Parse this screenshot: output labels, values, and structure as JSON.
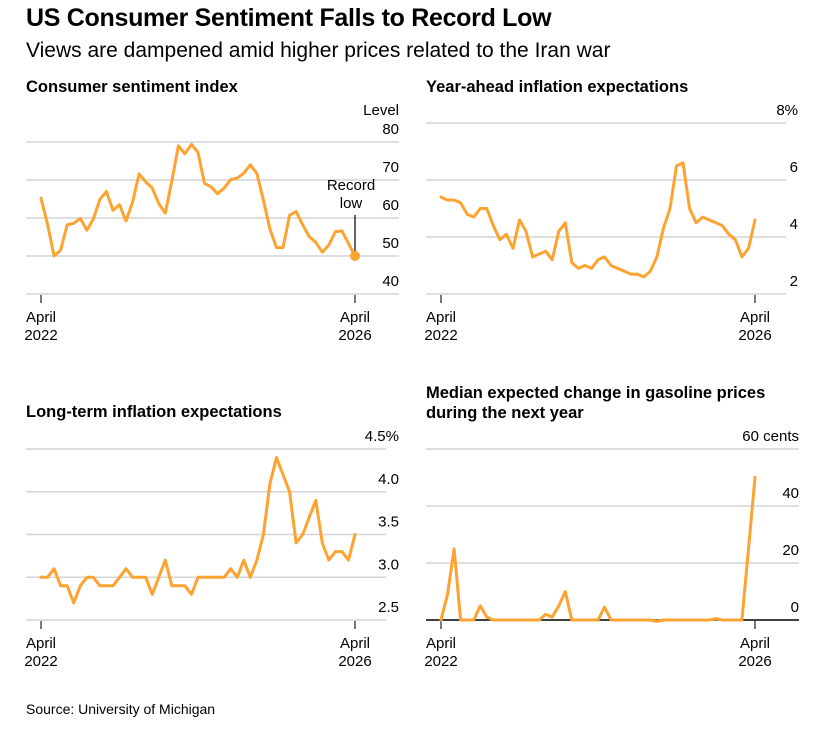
{
  "header": {
    "title": "US Consumer Sentiment Falls to Record Low",
    "subtitle": "Views are dampened amid higher prices related to the Iran war"
  },
  "source": "Source: University of Michigan",
  "colors": {
    "line": "#fca331",
    "grid": "#d4d4d4",
    "baseline": "#000000"
  },
  "chart_data": [
    {
      "type": "line",
      "title": "Consumer sentiment index",
      "unit_label": "Level",
      "x_start": "April 2022",
      "x_end": "April 2026",
      "x_tick_labels": [
        [
          "April",
          "2022"
        ],
        [
          "April",
          "2026"
        ]
      ],
      "y_ticks": [
        "80",
        "70",
        "60",
        "50",
        "40"
      ],
      "y_tick_values": [
        80,
        70,
        60,
        50,
        40
      ],
      "ylim": [
        40,
        80
      ],
      "annotation": {
        "text": [
          "Record",
          "low"
        ],
        "point_index": 48
      },
      "values": [
        65.2,
        58.4,
        50.0,
        51.5,
        58.2,
        58.6,
        59.9,
        56.8,
        59.7,
        64.9,
        67.0,
        62.0,
        63.5,
        59.2,
        64.2,
        71.6,
        69.5,
        67.9,
        63.8,
        61.3,
        69.7,
        79.0,
        76.9,
        79.4,
        77.2,
        69.1,
        68.2,
        66.4,
        67.9,
        70.1,
        70.5,
        71.8,
        74.0,
        71.7,
        64.7,
        57.0,
        52.2,
        52.2,
        60.7,
        61.7,
        58.2,
        55.1,
        53.6,
        51.0,
        52.9,
        56.4,
        56.6,
        53.3,
        50.0
      ]
    },
    {
      "type": "line",
      "title": "Year-ahead inflation expectations",
      "x_start": "April 2022",
      "x_end": "April 2026",
      "x_tick_labels": [
        [
          "April",
          "2022"
        ],
        [
          "April",
          "2026"
        ]
      ],
      "y_ticks": [
        "8%",
        "6",
        "4",
        "2"
      ],
      "y_tick_values": [
        8,
        6,
        4,
        2
      ],
      "ylim": [
        2,
        8
      ],
      "values": [
        5.4,
        5.3,
        5.3,
        5.2,
        4.8,
        4.7,
        5.0,
        5.0,
        4.4,
        3.9,
        4.1,
        3.6,
        4.6,
        4.2,
        3.3,
        3.4,
        3.5,
        3.2,
        4.2,
        4.5,
        3.1,
        2.9,
        3.0,
        2.9,
        3.2,
        3.3,
        3.0,
        2.9,
        2.8,
        2.7,
        2.7,
        2.6,
        2.8,
        3.3,
        4.3,
        5.0,
        6.5,
        6.6,
        5.0,
        4.5,
        4.7,
        4.6,
        4.5,
        4.4,
        4.1,
        3.9,
        3.3,
        3.6,
        4.6
      ]
    },
    {
      "type": "line",
      "title": "Long-term inflation expectations",
      "x_start": "April 2022",
      "x_end": "April 2026",
      "x_tick_labels": [
        [
          "April",
          "2022"
        ],
        [
          "April",
          "2026"
        ]
      ],
      "y_ticks": [
        "4.5%",
        "4.0",
        "3.5",
        "3.0",
        "2.5"
      ],
      "y_tick_values": [
        4.5,
        4.0,
        3.5,
        3.0,
        2.5
      ],
      "ylim": [
        2.5,
        4.5
      ],
      "values": [
        3.0,
        3.0,
        3.1,
        2.9,
        2.9,
        2.7,
        2.9,
        3.0,
        3.0,
        2.9,
        2.9,
        2.9,
        3.0,
        3.1,
        3.0,
        3.0,
        3.0,
        2.8,
        3.0,
        3.2,
        2.9,
        2.9,
        2.9,
        2.8,
        3.0,
        3.0,
        3.0,
        3.0,
        3.0,
        3.1,
        3.0,
        3.2,
        3.0,
        3.2,
        3.5,
        4.1,
        4.4,
        4.2,
        4.0,
        3.4,
        3.5,
        3.7,
        3.9,
        3.4,
        3.2,
        3.3,
        3.3,
        3.2,
        3.5
      ]
    },
    {
      "type": "line",
      "title": [
        "Median expected change in gasoline prices",
        "during the next year"
      ],
      "x_start": "April 2022",
      "x_end": "April 2026",
      "x_tick_labels": [
        [
          "April",
          "2022"
        ],
        [
          "April",
          "2026"
        ]
      ],
      "y_ticks": [
        "60 cents",
        "40",
        "20",
        "0"
      ],
      "y_tick_values": [
        60,
        40,
        20,
        0
      ],
      "ylim": [
        0,
        60
      ],
      "values": [
        0,
        9,
        25,
        0,
        0,
        0,
        5,
        1,
        0,
        0,
        0,
        0,
        0,
        0,
        0,
        0,
        2,
        1,
        5,
        10,
        0,
        0,
        0,
        0,
        0,
        4.5,
        0,
        0,
        0,
        0,
        0,
        0,
        0,
        -0.5,
        0,
        0,
        0,
        0,
        0,
        0,
        0,
        0,
        0.5,
        0,
        0,
        0,
        0,
        25,
        50
      ]
    }
  ]
}
